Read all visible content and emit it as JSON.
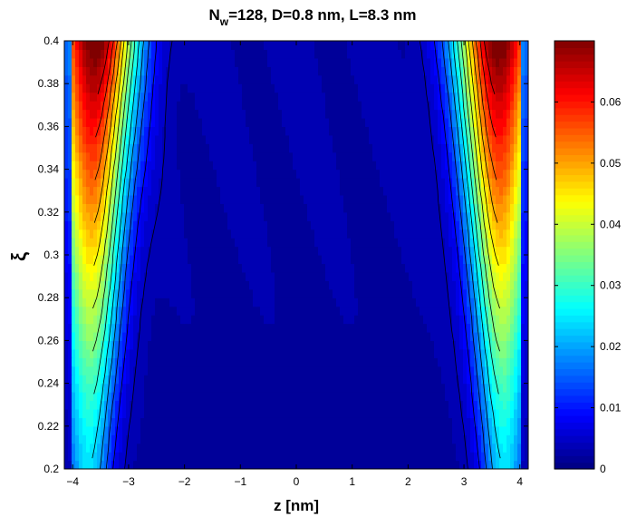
{
  "chart_data": {
    "type": "contour",
    "title": {
      "prefix": "N",
      "subscript": "w",
      "rest": "=128, D=0.8 nm, L=8.3 nm"
    },
    "xlabel": "z [nm]",
    "ylabel": "ξ",
    "xlim": [
      -4.15,
      4.15
    ],
    "ylim": [
      0.2,
      0.4
    ],
    "x_ticks": [
      "−4",
      "−3",
      "−2",
      "−1",
      "0",
      "1",
      "2",
      "3",
      "4"
    ],
    "y_ticks": [
      "0.2",
      "0.22",
      "0.24",
      "0.26",
      "0.28",
      "0.3",
      "0.32",
      "0.34",
      "0.36",
      "0.38",
      "0.4"
    ],
    "colorbar": {
      "colormap": "jet",
      "min": 0,
      "max": 0.07,
      "ticks": [
        "0",
        "0.01",
        "0.02",
        "0.03",
        "0.04",
        "0.05",
        "0.06"
      ]
    },
    "field_model": {
      "description": "value peaks near both walls (|z| ≈ 3.6–3.9 nm), rising with ξ; low (~0.003–0.007) in the center",
      "peak_value_at_top": 0.07,
      "peak_value_at_bottom": 0.022,
      "center_value": 0.003
    }
  }
}
